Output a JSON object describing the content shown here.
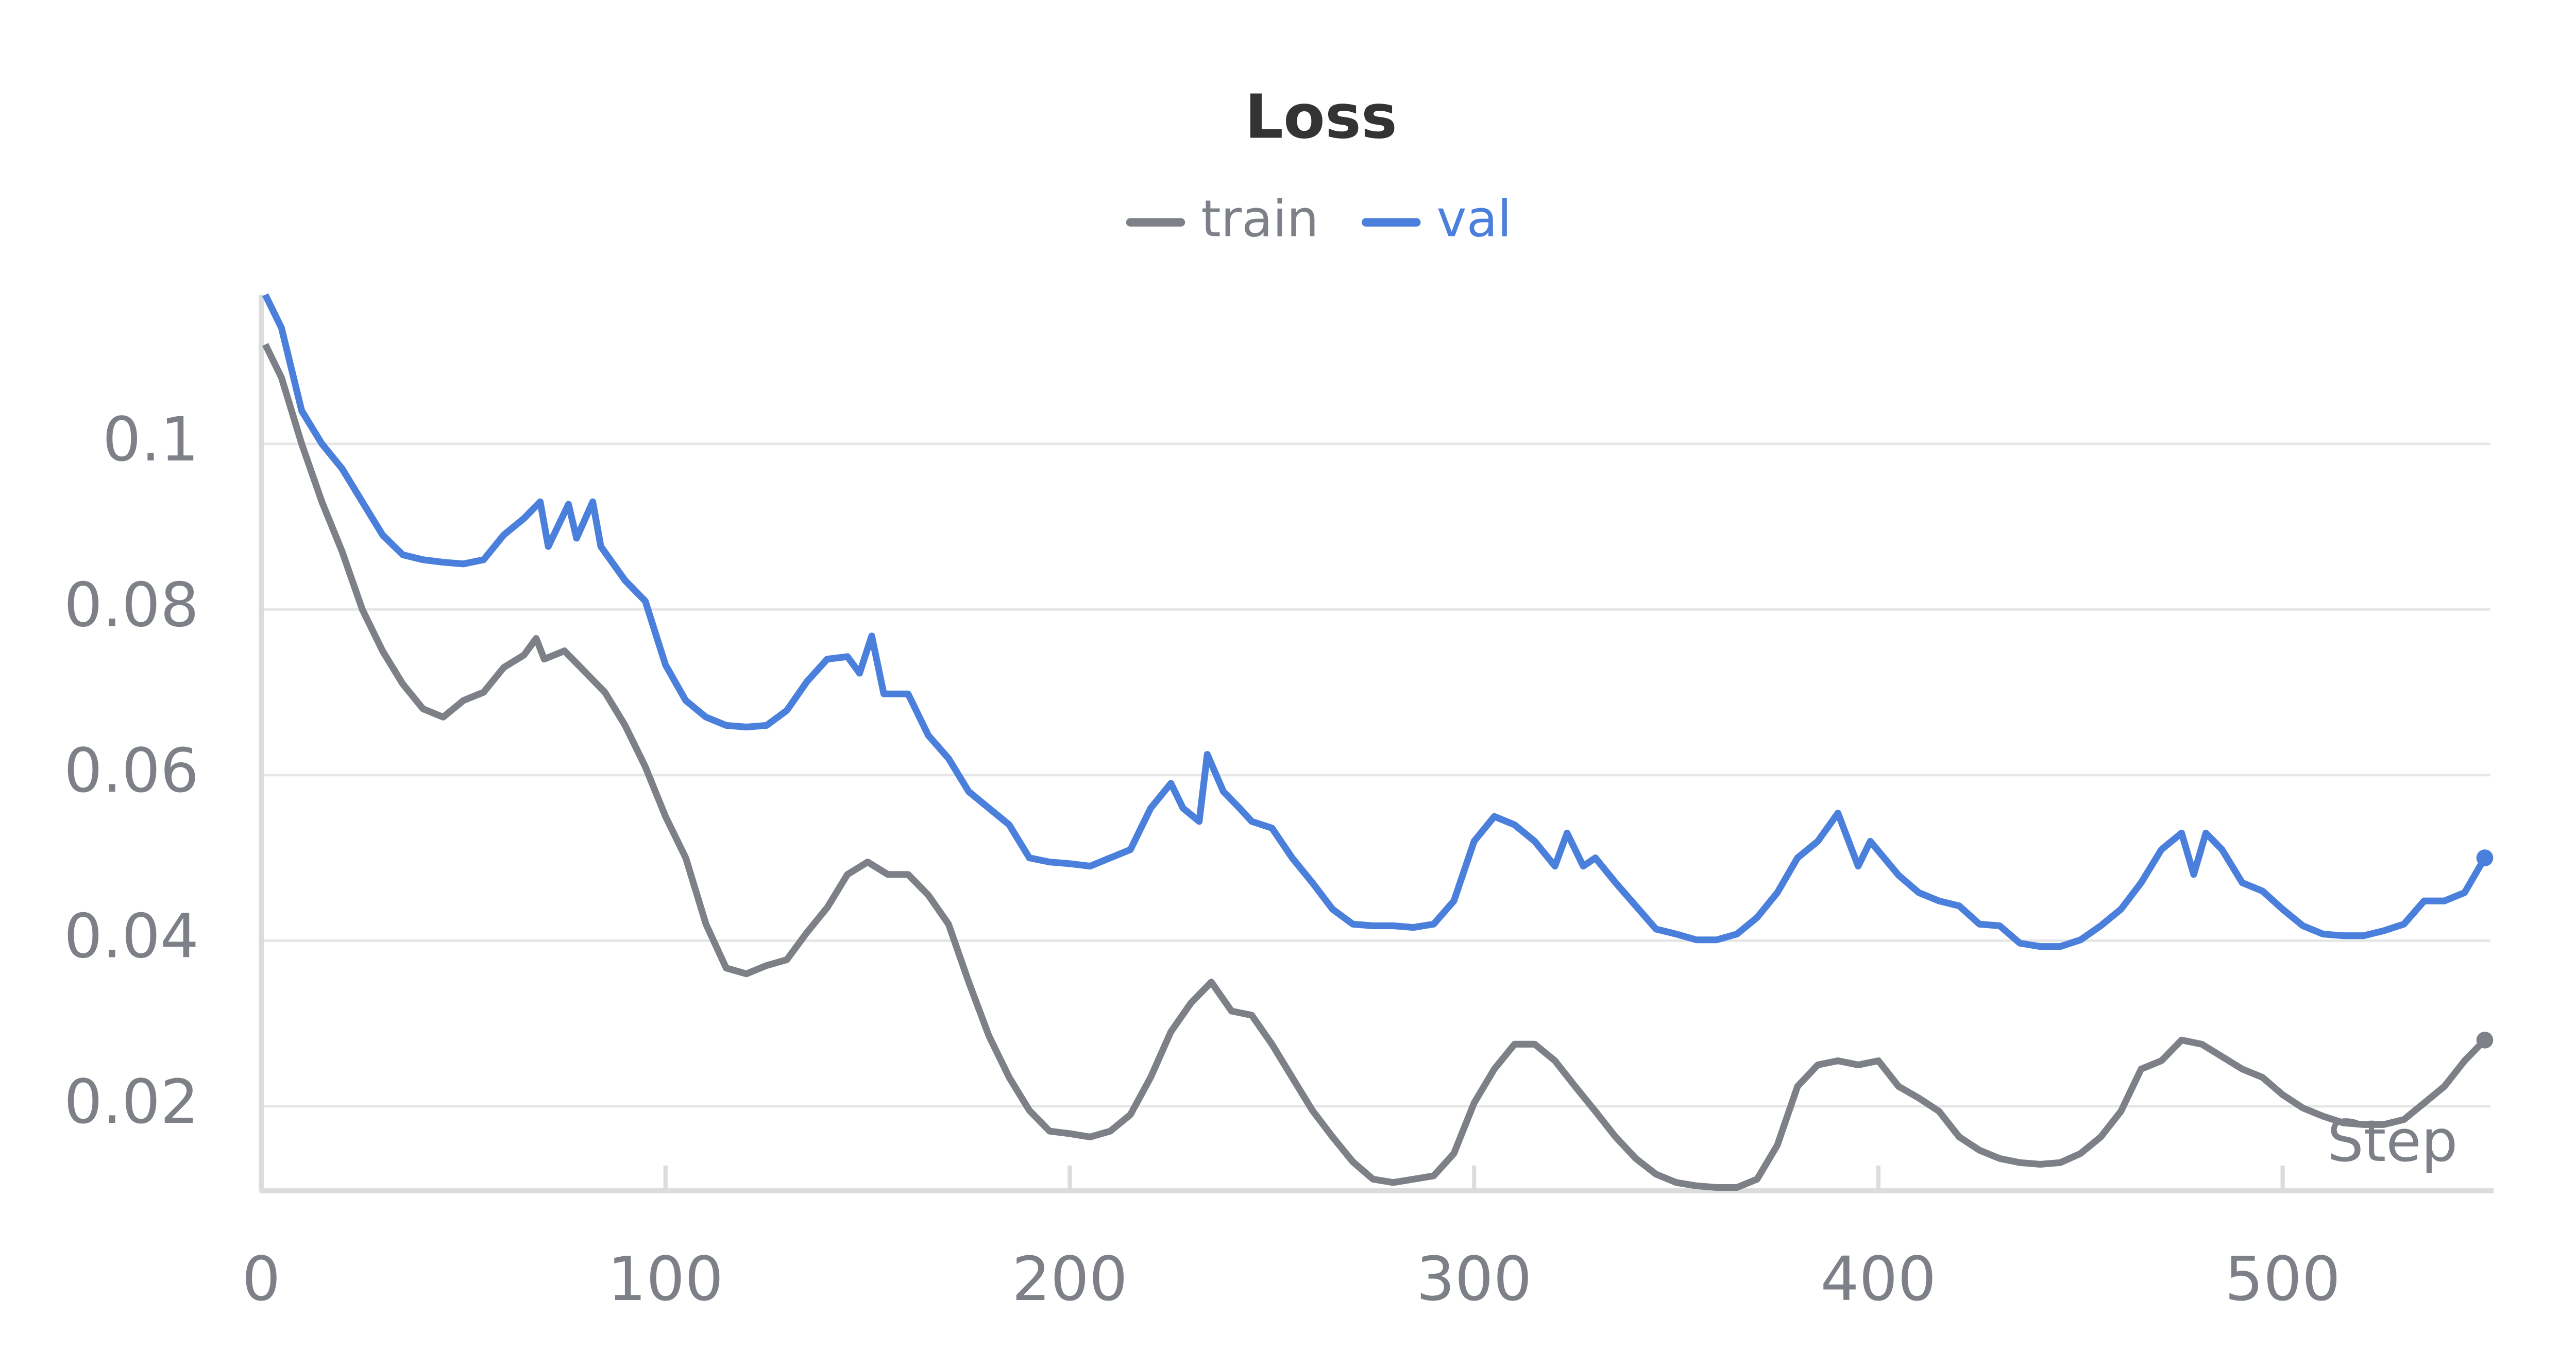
{
  "chart_data": {
    "type": "line",
    "title": "Loss",
    "xlabel": "Step",
    "xlim": [
      0,
      553
    ],
    "ylim": [
      0.01,
      0.118
    ],
    "xticks": [
      0,
      100,
      200,
      300,
      400,
      500
    ],
    "yticks": [
      0.02,
      0.04,
      0.06,
      0.08,
      0.1
    ],
    "grid": true,
    "legend": "top",
    "series": [
      {
        "name": "train",
        "color": "#7d8087",
        "x": [
          1,
          5,
          10,
          15,
          20,
          25,
          30,
          35,
          40,
          45,
          50,
          55,
          60,
          65,
          68,
          70,
          75,
          80,
          85,
          90,
          95,
          100,
          105,
          110,
          115,
          120,
          125,
          130,
          135,
          140,
          145,
          150,
          155,
          160,
          165,
          170,
          175,
          180,
          185,
          190,
          195,
          200,
          205,
          210,
          215,
          220,
          225,
          230,
          235,
          240,
          245,
          250,
          255,
          260,
          265,
          270,
          275,
          280,
          285,
          290,
          295,
          300,
          305,
          310,
          315,
          320,
          325,
          330,
          335,
          340,
          345,
          350,
          355,
          360,
          365,
          370,
          375,
          380,
          385,
          390,
          395,
          400,
          405,
          410,
          415,
          420,
          425,
          430,
          435,
          440,
          445,
          450,
          455,
          460,
          465,
          470,
          475,
          480,
          485,
          490,
          495,
          500,
          505,
          510,
          515,
          520,
          525,
          530,
          535,
          540,
          545,
          550
        ],
        "values": [
          0.112,
          0.108,
          0.1,
          0.093,
          0.087,
          0.08,
          0.075,
          0.071,
          0.068,
          0.067,
          0.069,
          0.07,
          0.073,
          0.0745,
          0.0765,
          0.074,
          0.075,
          0.0725,
          0.07,
          0.066,
          0.061,
          0.055,
          0.05,
          0.042,
          0.0367,
          0.036,
          0.037,
          0.0377,
          0.041,
          0.044,
          0.048,
          0.0495,
          0.048,
          0.048,
          0.0455,
          0.042,
          0.035,
          0.0285,
          0.0235,
          0.0195,
          0.017,
          0.0167,
          0.0163,
          0.017,
          0.019,
          0.0235,
          0.029,
          0.0325,
          0.035,
          0.0315,
          0.031,
          0.0275,
          0.0235,
          0.0195,
          0.0163,
          0.0133,
          0.0112,
          0.0108,
          0.0112,
          0.0116,
          0.0143,
          0.0204,
          0.0245,
          0.0275,
          0.0275,
          0.0255,
          0.0224,
          0.0194,
          0.0163,
          0.0137,
          0.0118,
          0.0108,
          0.0104,
          0.0102,
          0.0102,
          0.0112,
          0.0153,
          0.0224,
          0.025,
          0.0255,
          0.025,
          0.0255,
          0.0224,
          0.021,
          0.0194,
          0.0163,
          0.0147,
          0.0137,
          0.0132,
          0.013,
          0.0132,
          0.0143,
          0.0163,
          0.0194,
          0.0245,
          0.0255,
          0.028,
          0.0275,
          0.026,
          0.0245,
          0.0235,
          0.0214,
          0.0198,
          0.0188,
          0.018,
          0.0178,
          0.0178,
          0.0184,
          0.0204,
          0.0224,
          0.0255,
          0.028
        ]
      },
      {
        "name": "val",
        "color": "#4a7fdc",
        "x": [
          1,
          5,
          10,
          15,
          20,
          25,
          30,
          35,
          40,
          45,
          50,
          55,
          60,
          65,
          69,
          71,
          76,
          78,
          82,
          84,
          90,
          95,
          100,
          105,
          110,
          115,
          120,
          125,
          130,
          135,
          140,
          145,
          148,
          151,
          154,
          160,
          165,
          170,
          175,
          180,
          185,
          190,
          195,
          200,
          205,
          210,
          215,
          220,
          225,
          228,
          232,
          234,
          238,
          242,
          245,
          250,
          255,
          260,
          265,
          270,
          275,
          280,
          285,
          290,
          295,
          300,
          305,
          310,
          315,
          320,
          323,
          327,
          330,
          335,
          340,
          345,
          350,
          355,
          360,
          365,
          370,
          375,
          380,
          385,
          390,
          395,
          398,
          405,
          410,
          415,
          420,
          425,
          430,
          435,
          440,
          445,
          450,
          455,
          460,
          465,
          470,
          475,
          478,
          481,
          485,
          490,
          495,
          500,
          505,
          510,
          515,
          520,
          525,
          530,
          535,
          540,
          545,
          550
        ],
        "values": [
          0.118,
          0.114,
          0.104,
          0.1,
          0.097,
          0.093,
          0.089,
          0.0866,
          0.086,
          0.0857,
          0.0855,
          0.086,
          0.089,
          0.091,
          0.093,
          0.0876,
          0.0927,
          0.0886,
          0.093,
          0.0876,
          0.0835,
          0.081,
          0.0733,
          0.069,
          0.067,
          0.066,
          0.0658,
          0.066,
          0.0678,
          0.0713,
          0.074,
          0.0743,
          0.0723,
          0.0768,
          0.0698,
          0.0698,
          0.0648,
          0.062,
          0.058,
          0.056,
          0.054,
          0.05,
          0.0495,
          0.0493,
          0.049,
          0.05,
          0.051,
          0.056,
          0.059,
          0.056,
          0.0544,
          0.0625,
          0.058,
          0.056,
          0.0544,
          0.0536,
          0.05,
          0.047,
          0.0438,
          0.042,
          0.0418,
          0.0418,
          0.0416,
          0.042,
          0.0448,
          0.052,
          0.055,
          0.054,
          0.052,
          0.049,
          0.053,
          0.049,
          0.05,
          0.047,
          0.0442,
          0.0414,
          0.0408,
          0.0401,
          0.0401,
          0.0408,
          0.0428,
          0.0458,
          0.05,
          0.052,
          0.0554,
          0.049,
          0.052,
          0.0479,
          0.0458,
          0.0448,
          0.0442,
          0.042,
          0.0418,
          0.0397,
          0.0393,
          0.0393,
          0.0401,
          0.0418,
          0.0438,
          0.047,
          0.051,
          0.053,
          0.048,
          0.053,
          0.051,
          0.047,
          0.046,
          0.0438,
          0.0418,
          0.0408,
          0.0406,
          0.0406,
          0.0412,
          0.042,
          0.0448,
          0.0448,
          0.0458,
          0.05
        ]
      }
    ]
  }
}
